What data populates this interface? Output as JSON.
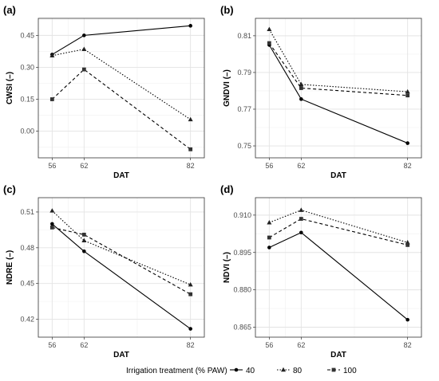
{
  "legend": {
    "title": "Irrigation treatment (% PAW)",
    "entries": [
      "40",
      "80",
      "100"
    ]
  },
  "chart_data": [
    {
      "type": "line",
      "tag": "(a)",
      "xlabel": "DAT",
      "ylabel": "CWSI (–)",
      "categories": [
        "56",
        "62",
        "82"
      ],
      "y_ticks": [
        "0.00",
        "0.15",
        "0.30",
        "0.45"
      ],
      "ylim": [
        -0.125,
        0.53
      ],
      "grid": true,
      "series": [
        {
          "name": "40",
          "marker": "circle",
          "dash": "solid",
          "values": [
            0.36,
            0.45,
            0.495
          ]
        },
        {
          "name": "80",
          "marker": "triangle",
          "dash": "dotted",
          "values": [
            0.355,
            0.385,
            0.055
          ]
        },
        {
          "name": "100",
          "marker": "square",
          "dash": "dashed",
          "values": [
            0.15,
            0.29,
            -0.085
          ]
        }
      ]
    },
    {
      "type": "line",
      "tag": "(b)",
      "xlabel": "DAT",
      "ylabel": "GNDVI (–)",
      "categories": [
        "56",
        "62",
        "82"
      ],
      "y_ticks": [
        "0.75",
        "0.77",
        "0.79",
        "0.81"
      ],
      "ylim": [
        0.7435,
        0.8195
      ],
      "grid": true,
      "series": [
        {
          "name": "40",
          "marker": "circle",
          "dash": "solid",
          "values": [
            0.805,
            0.7755,
            0.7515
          ]
        },
        {
          "name": "80",
          "marker": "triangle",
          "dash": "dotted",
          "values": [
            0.8135,
            0.7835,
            0.7795
          ]
        },
        {
          "name": "100",
          "marker": "square",
          "dash": "dashed",
          "values": [
            0.806,
            0.7815,
            0.7775
          ]
        }
      ]
    },
    {
      "type": "line",
      "tag": "(c)",
      "xlabel": "DAT",
      "ylabel": "NDRE (–)",
      "categories": [
        "56",
        "62",
        "82"
      ],
      "y_ticks": [
        "0.42",
        "0.45",
        "0.48",
        "0.51"
      ],
      "ylim": [
        0.405,
        0.522
      ],
      "grid": true,
      "series": [
        {
          "name": "40",
          "marker": "circle",
          "dash": "solid",
          "values": [
            0.5,
            0.477,
            0.412
          ]
        },
        {
          "name": "80",
          "marker": "triangle",
          "dash": "dotted",
          "values": [
            0.511,
            0.486,
            0.449
          ]
        },
        {
          "name": "100",
          "marker": "square",
          "dash": "dashed",
          "values": [
            0.497,
            0.491,
            0.441
          ]
        }
      ]
    },
    {
      "type": "line",
      "tag": "(d)",
      "xlabel": "DAT",
      "ylabel": "NDVI (–)",
      "categories": [
        "56",
        "62",
        "82"
      ],
      "y_ticks": [
        "0.865",
        "0.880",
        "0.895",
        "0.910"
      ],
      "ylim": [
        0.861,
        0.917
      ],
      "grid": true,
      "series": [
        {
          "name": "40",
          "marker": "circle",
          "dash": "solid",
          "values": [
            0.897,
            0.903,
            0.868
          ]
        },
        {
          "name": "80",
          "marker": "triangle",
          "dash": "dotted",
          "values": [
            0.907,
            0.912,
            0.899
          ]
        },
        {
          "name": "100",
          "marker": "square",
          "dash": "dashed",
          "values": [
            0.901,
            0.9085,
            0.898
          ]
        }
      ]
    }
  ]
}
